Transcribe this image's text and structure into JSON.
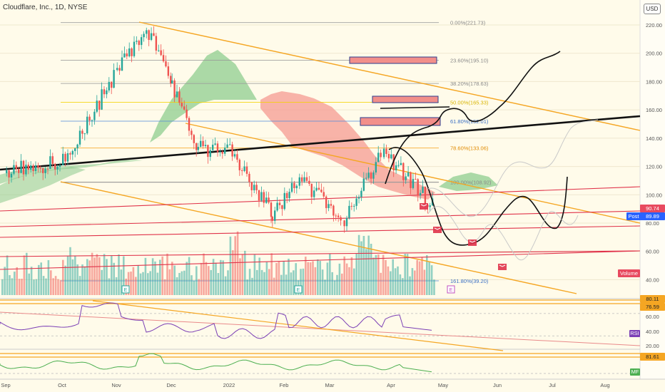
{
  "header": {
    "title": "Cloudflare, Inc., 1D, NYSE",
    "currency_button": "USD"
  },
  "colors": {
    "bull": "#26a69a",
    "bear": "#ef5350",
    "orange": "#f5a623",
    "red_line": "#e0334a",
    "fib_blue": "#5b8fd9",
    "rsi": "#7b3fb5",
    "mf": "#4caf50"
  },
  "price_axis": {
    "ticks": [
      "220.00",
      "200.00",
      "180.00",
      "160.00",
      "140.00",
      "120.00",
      "100.00",
      "80.00",
      "60.00",
      "40.00"
    ],
    "badges": {
      "last": "90.74",
      "post_label": "Post",
      "post_value": "89.89",
      "volume": "Volume"
    }
  },
  "fib_levels": [
    {
      "label": "0.00%(221.73)"
    },
    {
      "label": "23.60%(195.10)"
    },
    {
      "label": "38.20%(178.63)"
    },
    {
      "label": "50.00%(165.33)"
    },
    {
      "label": "61.80%(152.01)"
    },
    {
      "label": "78.60%(133.06)"
    },
    {
      "label": "100.00%(108.92)"
    },
    {
      "label": "161.80%(39.20)"
    }
  ],
  "rsi_panel": {
    "ticks": [
      "60.00",
      "40.00",
      "20.00"
    ],
    "badge_top": "80.11",
    "badge_bottom": "76.59",
    "label": "RSI"
  },
  "mf_panel": {
    "badge": "81.61",
    "label": "MF"
  },
  "time_axis": [
    "Sep",
    "Oct",
    "Nov",
    "Dec",
    "2022",
    "Feb",
    "Mar",
    "Apr",
    "May",
    "Jun",
    "Jul",
    "Aug"
  ],
  "earnings_markers": [
    "E",
    "E",
    "E"
  ],
  "chart_data": {
    "type": "candlestick",
    "ylim": [
      30,
      230
    ],
    "approx_close": [
      {
        "date": "2021-09-01",
        "close": 117
      },
      {
        "date": "2021-10-01",
        "close": 123
      },
      {
        "date": "2021-11-01",
        "close": 186
      },
      {
        "date": "2021-11-17",
        "close": 218
      },
      {
        "date": "2021-12-01",
        "close": 175
      },
      {
        "date": "2021-12-15",
        "close": 133
      },
      {
        "date": "2022-01-01",
        "close": 131
      },
      {
        "date": "2022-01-25",
        "close": 86
      },
      {
        "date": "2022-02-10",
        "close": 112
      },
      {
        "date": "2022-03-08",
        "close": 83
      },
      {
        "date": "2022-03-28",
        "close": 130
      },
      {
        "date": "2022-04-26",
        "close": 90.74
      }
    ]
  }
}
